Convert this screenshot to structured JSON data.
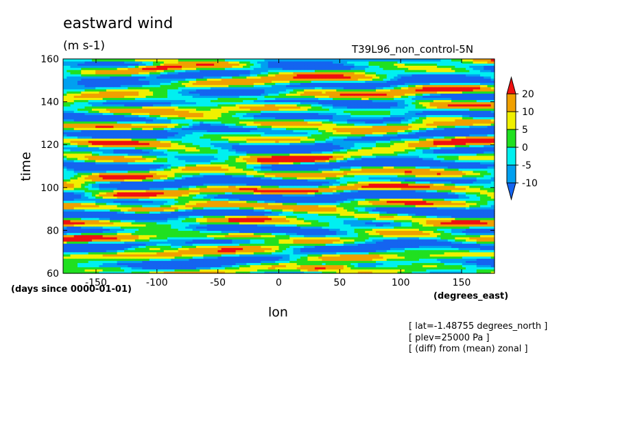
{
  "title": "eastward wind",
  "units": "(m s-1)",
  "run_name": "T39L96_non_control-5N",
  "info_lines": [
    "[ lat=-1.48755 degrees_north ]",
    "[ plev=25000 Pa ]",
    "[ (diff) from (mean) zonal ]"
  ],
  "chart_data": {
    "type": "heatmap",
    "title": "eastward wind",
    "units": "(m s-1)",
    "xlabel": "lon",
    "x_units": "(degrees_east)",
    "ylabel": "time",
    "y_units": "(days since 0000-01-01)",
    "xlim": [
      -177,
      177
    ],
    "ylim": [
      60,
      160
    ],
    "x_ticks": [
      -150,
      -100,
      -50,
      0,
      50,
      100,
      150
    ],
    "x_tick_labels": [
      "-150",
      "-100",
      "-50",
      "0",
      "50",
      "100",
      "150"
    ],
    "y_ticks": [
      60,
      80,
      100,
      120,
      140,
      160
    ],
    "y_tick_labels": [
      "60",
      "80",
      "100",
      "120",
      "140",
      "160"
    ],
    "colorbar": {
      "levels": [
        -10,
        -5,
        0,
        5,
        10,
        20
      ],
      "level_labels": [
        "-10",
        "-5",
        "0",
        "5",
        "10",
        "20"
      ],
      "colors": [
        "#1464f0",
        "#00a0f0",
        "#00f0f0",
        "#20e020",
        "#f0f000",
        "#f0a000",
        "#f01010"
      ],
      "extend": "both"
    },
    "bands": [
      {
        "t": 156,
        "lon_from": -120,
        "lon_to": -80,
        "value": 14
      },
      {
        "t": 154,
        "lon_from": 20,
        "lon_to": 90,
        "value": 8
      },
      {
        "t": 150,
        "lon_from": -150,
        "lon_to": -90,
        "value": 11
      },
      {
        "t": 146,
        "lon_from": 10,
        "lon_to": 60,
        "value": 10
      },
      {
        "t": 142,
        "lon_from": -60,
        "lon_to": 30,
        "value": 13
      },
      {
        "t": 141,
        "lon_from": 100,
        "lon_to": 170,
        "value": 9
      },
      {
        "t": 137,
        "lon_from": -140,
        "lon_to": -60,
        "value": 8
      },
      {
        "t": 133,
        "lon_from": 110,
        "lon_to": 160,
        "value": 15
      },
      {
        "t": 129,
        "lon_from": -110,
        "lon_to": -70,
        "value": 14
      },
      {
        "t": 126,
        "lon_from": -40,
        "lon_to": 20,
        "value": 7
      },
      {
        "t": 121,
        "lon_from": 40,
        "lon_to": 110,
        "value": 8
      },
      {
        "t": 117,
        "lon_from": -170,
        "lon_to": -130,
        "value": 9
      },
      {
        "t": 113,
        "lon_from": -20,
        "lon_to": 50,
        "value": 10
      },
      {
        "t": 108,
        "lon_from": -150,
        "lon_to": -60,
        "value": 10
      },
      {
        "t": 105,
        "lon_from": 60,
        "lon_to": 150,
        "value": 9
      },
      {
        "t": 99,
        "lon_from": -20,
        "lon_to": 80,
        "value": 9
      },
      {
        "t": 96,
        "lon_from": -170,
        "lon_to": -110,
        "value": 8
      },
      {
        "t": 90,
        "lon_from": -130,
        "lon_to": -60,
        "value": 11
      },
      {
        "t": 86,
        "lon_from": -40,
        "lon_to": 20,
        "value": 8
      },
      {
        "t": 83,
        "lon_from": 90,
        "lon_to": 170,
        "value": 7
      },
      {
        "t": 78,
        "lon_from": -60,
        "lon_to": 30,
        "value": 9
      },
      {
        "t": 72,
        "lon_from": -130,
        "lon_to": -90,
        "value": 13
      },
      {
        "t": 68,
        "lon_from": 100,
        "lon_to": 170,
        "value": 8
      },
      {
        "t": 63,
        "lon_from": 20,
        "lon_to": 60,
        "value": 16
      },
      {
        "t": 62,
        "lon_from": -170,
        "lon_to": -110,
        "value": 9
      }
    ]
  }
}
